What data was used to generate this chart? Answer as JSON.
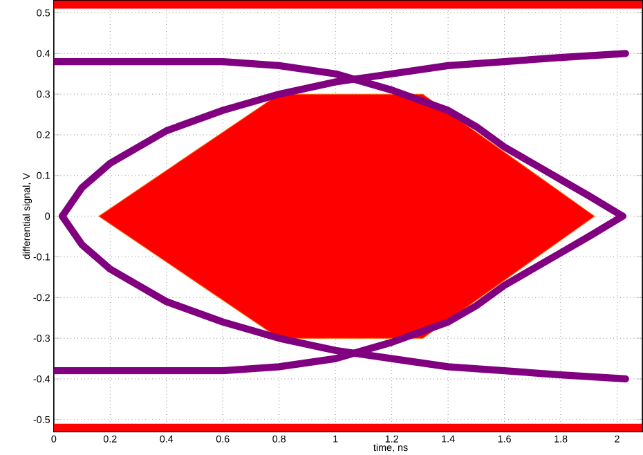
{
  "chart_data": {
    "type": "line",
    "xlabel": "time, ns",
    "ylabel": "differential signal, V",
    "xlim": [
      0,
      2.09
    ],
    "ylim": [
      -0.53,
      0.53
    ],
    "xticks": [
      0,
      0.2,
      0.4,
      0.6,
      0.8,
      1,
      1.2,
      1.4,
      1.6,
      1.8,
      2
    ],
    "yticks": [
      -0.5,
      -0.4,
      -0.3,
      -0.2,
      -0.1,
      0,
      0.1,
      0.2,
      0.3,
      0.4,
      0.5
    ],
    "grid": true,
    "marker": "none",
    "line_style": "solid",
    "series": [
      {
        "type": "area",
        "color": "#ff0000",
        "x": [
          0.16,
          0.8,
          1.31,
          1.92,
          1.31,
          0.8,
          0.16
        ],
        "values": [
          0,
          0.3,
          0.3,
          0,
          -0.3,
          -0.3,
          0
        ]
      },
      {
        "color": "#800080",
        "x": [
          0.03,
          0.1,
          0.2,
          0.4,
          0.6,
          0.8,
          1.0,
          1.2,
          1.4,
          1.6,
          1.8,
          2.03
        ],
        "values": [
          0,
          0.07,
          0.13,
          0.21,
          0.26,
          0.3,
          0.33,
          0.35,
          0.37,
          0.38,
          0.39,
          0.4
        ]
      },
      {
        "color": "#800080",
        "x": [
          0,
          0.2,
          0.4,
          0.6,
          0.8,
          1.0,
          1.2,
          1.4,
          1.5,
          1.6,
          1.8,
          1.9,
          2.02
        ],
        "values": [
          0.38,
          0.38,
          0.38,
          0.38,
          0.37,
          0.35,
          0.31,
          0.26,
          0.22,
          0.17,
          0.09,
          0.05,
          0
        ]
      },
      {
        "color": "#800080",
        "x": [
          0.03,
          0.1,
          0.2,
          0.4,
          0.6,
          0.8,
          1.0,
          1.2,
          1.4,
          1.6,
          1.8,
          2.03
        ],
        "values": [
          0,
          -0.07,
          -0.13,
          -0.21,
          -0.26,
          -0.3,
          -0.33,
          -0.35,
          -0.37,
          -0.38,
          -0.39,
          -0.4
        ]
      },
      {
        "color": "#800080",
        "x": [
          0,
          0.2,
          0.4,
          0.6,
          0.8,
          1.0,
          1.2,
          1.4,
          1.5,
          1.6,
          1.8,
          1.9,
          2.02
        ],
        "values": [
          -0.38,
          -0.38,
          -0.38,
          -0.38,
          -0.37,
          -0.35,
          -0.31,
          -0.26,
          -0.22,
          -0.17,
          -0.09,
          -0.05,
          0
        ]
      }
    ],
    "bands": [
      {
        "axis": "y",
        "from": 0.51,
        "to": 0.53,
        "color": "#ff0000"
      },
      {
        "axis": "y",
        "from": -0.53,
        "to": -0.51,
        "color": "#ff0000"
      }
    ]
  }
}
